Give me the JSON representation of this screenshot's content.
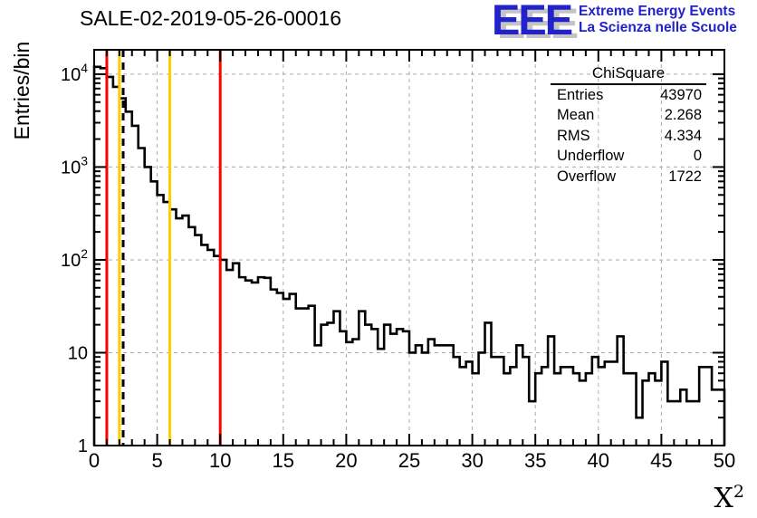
{
  "title": "SALE-02-2019-05-26-00016",
  "logo": {
    "acronym": "EEE",
    "line1": "Extreme Energy Events",
    "line2": "La Scienza nelle Scuole",
    "color": "#2222cc"
  },
  "stats": {
    "title": "ChiSquare",
    "rows": [
      {
        "label": "Entries",
        "value": "43970"
      },
      {
        "label": "Mean",
        "value": "2.268"
      },
      {
        "label": "RMS",
        "value": "4.334"
      },
      {
        "label": "Underflow",
        "value": "0"
      },
      {
        "label": "Overflow",
        "value": "1722"
      }
    ]
  },
  "axes": {
    "y_title": "Entries/bin",
    "x_title_base": "X",
    "x_title_exp": "2",
    "x_ticks": [
      0,
      5,
      10,
      15,
      20,
      25,
      30,
      35,
      40,
      45,
      50
    ],
    "y_labels": [
      {
        "base": "1",
        "exp": ""
      },
      {
        "base": "10",
        "exp": ""
      },
      {
        "base": "10",
        "exp": "2"
      },
      {
        "base": "10",
        "exp": "3"
      },
      {
        "base": "10",
        "exp": "4"
      }
    ]
  },
  "chart_data": {
    "type": "bar",
    "title": "SALE-02-2019-05-26-00016",
    "xlabel": "X^2",
    "ylabel": "Entries/bin",
    "x_start": 0,
    "bin_width": 0.5,
    "n_bins": 100,
    "xlim": [
      0,
      50
    ],
    "ylim": [
      1,
      18300
    ],
    "y_scale": "log",
    "grid": true,
    "grid_color": "#aaaaaa",
    "hist_color": "#000000",
    "values": [
      12000,
      11600,
      9350,
      7300,
      5500,
      3950,
      2780,
      1600,
      1000,
      700,
      500,
      420,
      350,
      280,
      300,
      225,
      185,
      145,
      128,
      110,
      100,
      78,
      92,
      65,
      60,
      57,
      65,
      64,
      48,
      44,
      38,
      43,
      30,
      30,
      32,
      12,
      20,
      21,
      28,
      17,
      13,
      14,
      28,
      20,
      18,
      11,
      20,
      16,
      18,
      17,
      10,
      12,
      10,
      14,
      12,
      12,
      12,
      9,
      7,
      8,
      6,
      10,
      21,
      9,
      9,
      6,
      7,
      12,
      9,
      3,
      6,
      7,
      15,
      6,
      7,
      7,
      6,
      5,
      6,
      9,
      7,
      8,
      8,
      15,
      6,
      6,
      2,
      5,
      6,
      5,
      8,
      3,
      3,
      4,
      3,
      3,
      7,
      7,
      4,
      4
    ],
    "vlines": [
      {
        "x": 1,
        "color": "#ff0000",
        "style": "solid"
      },
      {
        "x": 2,
        "color": "#ffcc00",
        "style": "solid"
      },
      {
        "x": 2.3,
        "color": "#000000",
        "style": "dashed"
      },
      {
        "x": 6,
        "color": "#ffcc00",
        "style": "solid"
      },
      {
        "x": 10,
        "color": "#ff0000",
        "style": "solid"
      }
    ]
  }
}
